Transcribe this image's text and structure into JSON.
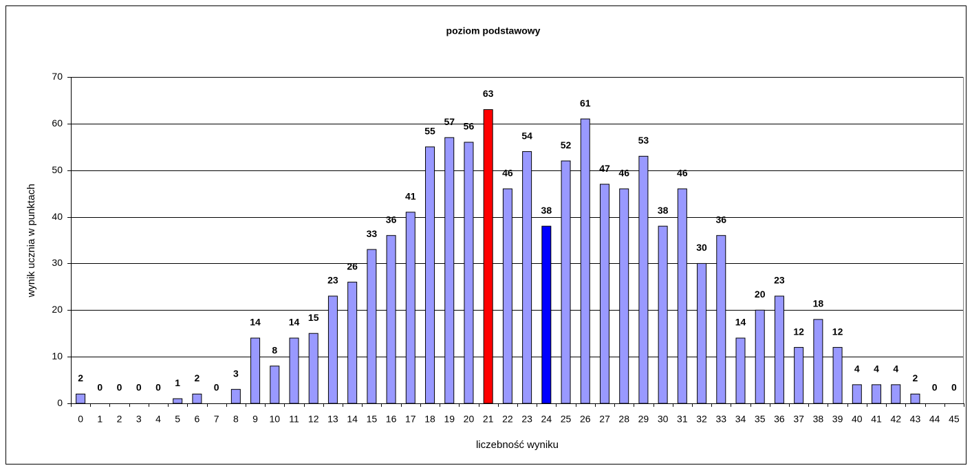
{
  "chart_data": {
    "type": "bar",
    "title": "poziom podstawowy",
    "x_label": "liczebność wyniku",
    "y_label": "wynik ucznia w punktach",
    "categories": [
      "0",
      "1",
      "2",
      "3",
      "4",
      "5",
      "6",
      "7",
      "8",
      "9",
      "10",
      "11",
      "12",
      "13",
      "14",
      "15",
      "16",
      "17",
      "18",
      "19",
      "20",
      "21",
      "22",
      "23",
      "24",
      "25",
      "26",
      "27",
      "28",
      "29",
      "30",
      "31",
      "32",
      "33",
      "34",
      "35",
      "36",
      "37",
      "38",
      "39",
      "40",
      "41",
      "42",
      "43",
      "44",
      "45"
    ],
    "values": [
      2,
      0,
      0,
      0,
      0,
      1,
      2,
      0,
      3,
      14,
      8,
      14,
      15,
      23,
      26,
      33,
      36,
      41,
      55,
      57,
      56,
      63,
      46,
      54,
      38,
      52,
      61,
      47,
      46,
      53,
      38,
      46,
      30,
      36,
      14,
      20,
      23,
      12,
      18,
      12,
      4,
      4,
      4,
      2,
      0,
      0
    ],
    "colors": [
      "#9999ff",
      "#9999ff",
      "#9999ff",
      "#9999ff",
      "#9999ff",
      "#9999ff",
      "#9999ff",
      "#9999ff",
      "#9999ff",
      "#9999ff",
      "#9999ff",
      "#9999ff",
      "#9999ff",
      "#9999ff",
      "#9999ff",
      "#9999ff",
      "#9999ff",
      "#9999ff",
      "#9999ff",
      "#9999ff",
      "#9999ff",
      "#ff0000",
      "#9999ff",
      "#9999ff",
      "#0000ff",
      "#9999ff",
      "#9999ff",
      "#9999ff",
      "#9999ff",
      "#9999ff",
      "#9999ff",
      "#9999ff",
      "#9999ff",
      "#9999ff",
      "#9999ff",
      "#9999ff",
      "#9999ff",
      "#9999ff",
      "#9999ff",
      "#9999ff",
      "#9999ff",
      "#9999ff",
      "#9999ff",
      "#9999ff",
      "#9999ff",
      "#9999ff"
    ],
    "ylim": [
      0,
      70
    ],
    "yticks": [
      0,
      10,
      20,
      30,
      40,
      50,
      60,
      70
    ],
    "grid": true
  }
}
